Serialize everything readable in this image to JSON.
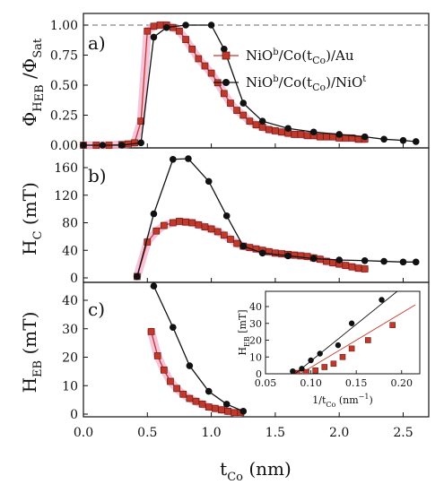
{
  "chart_data": [
    {
      "panel": "a)",
      "type": "line",
      "ylabel": "Φ_HEB / Φ_Sat",
      "ylim": [
        0,
        1.0
      ],
      "yticks": [
        "0.00",
        "0.25",
        "0.50",
        "0.75",
        "1.00"
      ],
      "xlim": [
        0,
        2.7
      ],
      "reference_line": {
        "y": 1.0,
        "style": "dashed",
        "color": "#888888"
      },
      "legend": {
        "placement": "top-right",
        "entries": [
          {
            "series": 0,
            "main": "NiO",
            "sup1": "b",
            "mid": "/Co(t",
            "sub": "Co",
            "end": ")/Au"
          },
          {
            "series": 1,
            "main": "NiO",
            "sup1": "b",
            "mid": "/Co(t",
            "sub": "Co",
            "end": ")/NiO",
            "sup2": "t"
          }
        ]
      },
      "series": [
        {
          "color": "#c0392b",
          "marker": "square",
          "halo": "#f4b8d4",
          "x": [
            0.0,
            0.1,
            0.2,
            0.3,
            0.35,
            0.4,
            0.45,
            0.5,
            0.55,
            0.6,
            0.65,
            0.7,
            0.75,
            0.8,
            0.85,
            0.9,
            0.95,
            1.0,
            1.05,
            1.1,
            1.15,
            1.2,
            1.25,
            1.3,
            1.35,
            1.4,
            1.45,
            1.5,
            1.55,
            1.6,
            1.65,
            1.7,
            1.75,
            1.8,
            1.85,
            1.9,
            1.95,
            2.0,
            2.05,
            2.1,
            2.15,
            2.2
          ],
          "y": [
            0.0,
            0.0,
            0.0,
            0.005,
            0.01,
            0.02,
            0.2,
            0.95,
            0.99,
            1.0,
            1.0,
            0.98,
            0.95,
            0.88,
            0.8,
            0.72,
            0.66,
            0.6,
            0.52,
            0.43,
            0.35,
            0.29,
            0.25,
            0.2,
            0.17,
            0.15,
            0.13,
            0.12,
            0.11,
            0.1,
            0.09,
            0.09,
            0.08,
            0.08,
            0.07,
            0.07,
            0.07,
            0.06,
            0.06,
            0.06,
            0.05,
            0.05
          ]
        },
        {
          "color": "#111111",
          "marker": "circle",
          "x": [
            0.0,
            0.15,
            0.3,
            0.45,
            0.55,
            0.65,
            0.8,
            1.0,
            1.1,
            1.25,
            1.4,
            1.6,
            1.8,
            2.0,
            2.2,
            2.35,
            2.5,
            2.6
          ],
          "y": [
            0.0,
            0.0,
            0.0,
            0.02,
            0.9,
            0.98,
            1.0,
            1.0,
            0.8,
            0.35,
            0.2,
            0.14,
            0.11,
            0.09,
            0.07,
            0.05,
            0.04,
            0.03
          ]
        }
      ]
    },
    {
      "panel": "b)",
      "type": "line",
      "ylabel": "H_C (mT)",
      "ylim": [
        0,
        180
      ],
      "yticks": [
        "0",
        "40",
        "80",
        "120",
        "160"
      ],
      "xlim": [
        0,
        2.7
      ],
      "series": [
        {
          "color": "#c0392b",
          "marker": "square",
          "halo": "#f4b8d4",
          "x": [
            0.42,
            0.5,
            0.57,
            0.63,
            0.7,
            0.75,
            0.8,
            0.85,
            0.9,
            0.95,
            1.0,
            1.05,
            1.1,
            1.15,
            1.2,
            1.25,
            1.3,
            1.35,
            1.4,
            1.45,
            1.5,
            1.55,
            1.6,
            1.65,
            1.7,
            1.75,
            1.8,
            1.85,
            1.9,
            1.95,
            2.0,
            2.05,
            2.1,
            2.15,
            2.2
          ],
          "y": [
            2,
            52,
            68,
            76,
            80,
            82,
            81,
            80,
            77,
            74,
            71,
            67,
            62,
            56,
            50,
            46,
            44,
            42,
            40,
            38,
            36,
            35,
            34,
            33,
            32,
            31,
            29,
            27,
            24,
            22,
            20,
            18,
            16,
            14,
            13
          ]
        },
        {
          "color": "#111111",
          "marker": "circle",
          "x": [
            0.42,
            0.55,
            0.7,
            0.82,
            0.98,
            1.12,
            1.25,
            1.4,
            1.6,
            1.8,
            2.0,
            2.2,
            2.35,
            2.5,
            2.6
          ],
          "y": [
            2,
            93,
            172,
            173,
            140,
            90,
            46,
            36,
            32,
            28,
            26,
            25,
            24,
            23,
            23
          ]
        }
      ]
    },
    {
      "panel": "c)",
      "type": "line",
      "ylabel": "H_EB (mT)",
      "ylim": [
        0,
        47
      ],
      "yticks": [
        "0",
        "10",
        "20",
        "30",
        "40"
      ],
      "xlim": [
        0,
        2.7
      ],
      "xticks": [
        "0.0",
        "0.5",
        "1.0",
        "1.5",
        "2.0",
        "2.5"
      ],
      "xlabel": "t_Co (nm)",
      "series": [
        {
          "color": "#c0392b",
          "marker": "square",
          "halo": "#f4b8d4",
          "x": [
            0.53,
            0.58,
            0.63,
            0.68,
            0.73,
            0.78,
            0.83,
            0.88,
            0.93,
            0.98,
            1.03,
            1.08,
            1.13,
            1.18,
            1.23
          ],
          "y": [
            29,
            20.5,
            15.5,
            11.5,
            9,
            7,
            5.5,
            4.5,
            3.5,
            2.5,
            2,
            1.5,
            1,
            0.5,
            0.5
          ]
        },
        {
          "color": "#111111",
          "marker": "circle",
          "x": [
            0.55,
            0.7,
            0.83,
            0.98,
            1.12,
            1.25
          ],
          "y": [
            45,
            30.5,
            17,
            8,
            3.5,
            1
          ]
        }
      ],
      "inset": {
        "xlabel": "1/t_Co (nm⁻¹)",
        "ylabel": "H_EB [mT]",
        "xlim": [
          0.05,
          0.22
        ],
        "ylim": [
          0,
          48
        ],
        "xticks": [
          "0.05",
          "0.10",
          "0.15",
          "0.20"
        ],
        "yticks": [
          "0",
          "10",
          "20",
          "30",
          "40"
        ],
        "series": [
          {
            "color": "#c0392b",
            "marker": "square",
            "x": [
              0.085,
              0.095,
              0.105,
              0.115,
              0.125,
              0.135,
              0.145,
              0.163,
              0.19
            ],
            "y": [
              0.5,
              1,
              2,
              4,
              6,
              10,
              15,
              20,
              29
            ],
            "fit": {
              "x": [
                0.082,
                0.215
              ],
              "y": [
                -2,
                41
              ]
            }
          },
          {
            "color": "#111111",
            "marker": "circle",
            "x": [
              0.08,
              0.09,
              0.1,
              0.11,
              0.13,
              0.145,
              0.178
            ],
            "y": [
              1.5,
              3,
              8,
              12,
              17,
              30,
              44
            ],
            "fit": {
              "x": [
                0.078,
                0.195
              ],
              "y": [
                -2,
                49
              ]
            }
          }
        ]
      }
    }
  ]
}
